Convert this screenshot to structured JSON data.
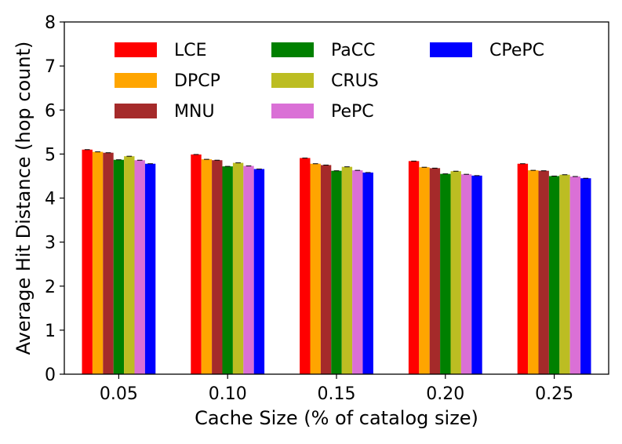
{
  "chart_data": {
    "type": "bar",
    "title": "",
    "xlabel": "Cache Size (% of catalog size)",
    "ylabel": "Average Hit Distance (hop count)",
    "ylim": [
      0,
      8
    ],
    "yticks": [
      "0",
      "1",
      "2",
      "3",
      "4",
      "5",
      "6",
      "7",
      "8"
    ],
    "categories": [
      "0.05",
      "0.10",
      "0.15",
      "0.20",
      "0.25"
    ],
    "legend_position": "top",
    "grid": false,
    "series": [
      {
        "name": "LCE",
        "color": "#ff0000",
        "values": [
          5.1,
          4.99,
          4.91,
          4.84,
          4.78
        ]
      },
      {
        "name": "DPCP",
        "color": "#ffa500",
        "values": [
          5.05,
          4.88,
          4.78,
          4.7,
          4.63
        ]
      },
      {
        "name": "MNU",
        "color": "#a52a2a",
        "values": [
          5.03,
          4.86,
          4.75,
          4.68,
          4.62
        ]
      },
      {
        "name": "PaCC",
        "color": "#008000",
        "values": [
          4.87,
          4.72,
          4.62,
          4.55,
          4.5
        ]
      },
      {
        "name": "CRUS",
        "color": "#bcbd22",
        "values": [
          4.95,
          4.8,
          4.71,
          4.61,
          4.53
        ]
      },
      {
        "name": "PePC",
        "color": "#da70d6",
        "values": [
          4.86,
          4.73,
          4.63,
          4.54,
          4.49
        ]
      },
      {
        "name": "CPePC",
        "color": "#0000ff",
        "values": [
          4.78,
          4.66,
          4.58,
          4.51,
          4.45
        ]
      }
    ]
  }
}
